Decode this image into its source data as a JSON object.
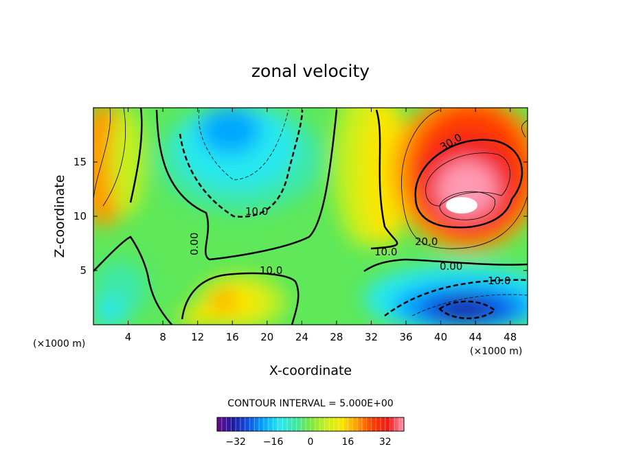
{
  "chart_data": {
    "type": "heatmap",
    "title": "zonal velocity",
    "xlabel": "X-coordinate",
    "ylabel": "Z-coordinate",
    "x_unit_label": "(×1000 m)",
    "x_unit_label_right": "(×1000 m)",
    "xlim": [
      0,
      50
    ],
    "ylim": [
      0,
      20
    ],
    "xticks": [
      "4",
      "8",
      "12",
      "16",
      "20",
      "24",
      "28",
      "32",
      "36",
      "40",
      "44",
      "48"
    ],
    "yticks": [
      "5",
      "10",
      "15"
    ],
    "contour_interval_text": "CONTOUR INTERVAL = 5.000E+00",
    "contour_interval": 5.0,
    "contour_labels": [
      "30.0",
      "20.0",
      "10.0",
      "0.00",
      "10.0",
      "10.0",
      "0.00",
      "10.0"
    ],
    "colorbar": {
      "min": -40,
      "max": 40,
      "ticks": [
        "−32",
        "−16",
        "0",
        "16",
        "32"
      ],
      "colors": [
        "#6a0a8a",
        "#1e1aa0",
        "#0f52e6",
        "#00a8ff",
        "#28e8f0",
        "#3ce8a8",
        "#7ae842",
        "#c8f01e",
        "#fae600",
        "#ff9a00",
        "#ff3c00",
        "#f01a1a",
        "#ff9ab4"
      ]
    },
    "features": [
      {
        "kind": "max",
        "x": 42.5,
        "z": 11.0,
        "value": 40
      },
      {
        "kind": "min",
        "x": 42.0,
        "z": 2.0,
        "value": -32
      },
      {
        "kind": "min",
        "x": 17.0,
        "z": 18.5,
        "value": -18
      }
    ]
  }
}
